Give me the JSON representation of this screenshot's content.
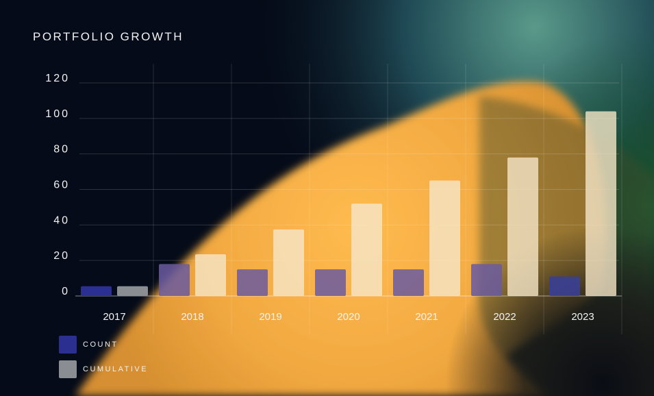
{
  "title": "PORTFOLIO GROWTH",
  "colors": {
    "count": "#2b2f8f",
    "cumulative": "#8a8d91",
    "background": "#050b18",
    "accent_blob": "#fbb84b"
  },
  "legend": [
    {
      "label": "COUNT",
      "color": "#2b2f8f"
    },
    {
      "label": "CUMULATIVE",
      "color": "#8a8d91"
    }
  ],
  "chart_data": {
    "type": "bar",
    "title": "PORTFOLIO GROWTH",
    "categories": [
      "2017",
      "2018",
      "2019",
      "2020",
      "2021",
      "2022",
      "2023"
    ],
    "series": [
      {
        "name": "COUNT",
        "values": [
          5.5,
          18,
          15,
          15,
          15,
          18,
          11
        ]
      },
      {
        "name": "CUMULATIVE",
        "values": [
          5.5,
          23.5,
          37.5,
          52,
          65,
          78,
          104
        ]
      }
    ],
    "yticks": [
      0,
      20,
      40,
      60,
      80,
      100,
      120
    ],
    "ylim": [
      0,
      120
    ],
    "grid": true,
    "legend_position": "bottom-left"
  }
}
